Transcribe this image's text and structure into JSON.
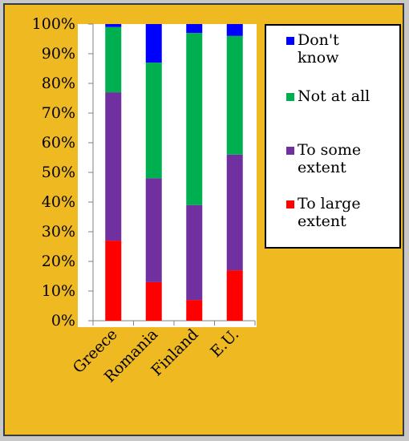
{
  "chart_data": {
    "type": "bar",
    "stacked": true,
    "percent_stacked": true,
    "categories": [
      "Greece",
      "Romania",
      "Finland",
      "E.U."
    ],
    "series": [
      {
        "name": "To large extent",
        "color": "#ff0000",
        "values": [
          27,
          13,
          7,
          17
        ]
      },
      {
        "name": "To some extent",
        "color": "#7030a0",
        "values": [
          50,
          35,
          32,
          39
        ]
      },
      {
        "name": "Not at all",
        "color": "#00b050",
        "values": [
          22,
          39,
          58,
          40
        ]
      },
      {
        "name": "Don't know",
        "color": "#0000ff",
        "values": [
          1,
          13,
          3,
          4
        ]
      }
    ],
    "ylim": [
      0,
      100
    ],
    "yticks": [
      "0%",
      "10%",
      "20%",
      "30%",
      "40%",
      "50%",
      "60%",
      "70%",
      "80%",
      "90%",
      "100%"
    ],
    "legend_order": [
      {
        "lines": [
          "Don't",
          "know"
        ],
        "color": "#0000ff"
      },
      {
        "lines": [
          "Not at all"
        ],
        "color": "#00b050"
      },
      {
        "lines": [
          "To some",
          "extent"
        ],
        "color": "#7030a0"
      },
      {
        "lines": [
          "To large",
          "extent"
        ],
        "color": "#ff0000"
      }
    ],
    "legend_position": "right",
    "grid": false,
    "colors": {
      "panel_background": "#efb922",
      "plot_background": "#ffffff"
    }
  }
}
